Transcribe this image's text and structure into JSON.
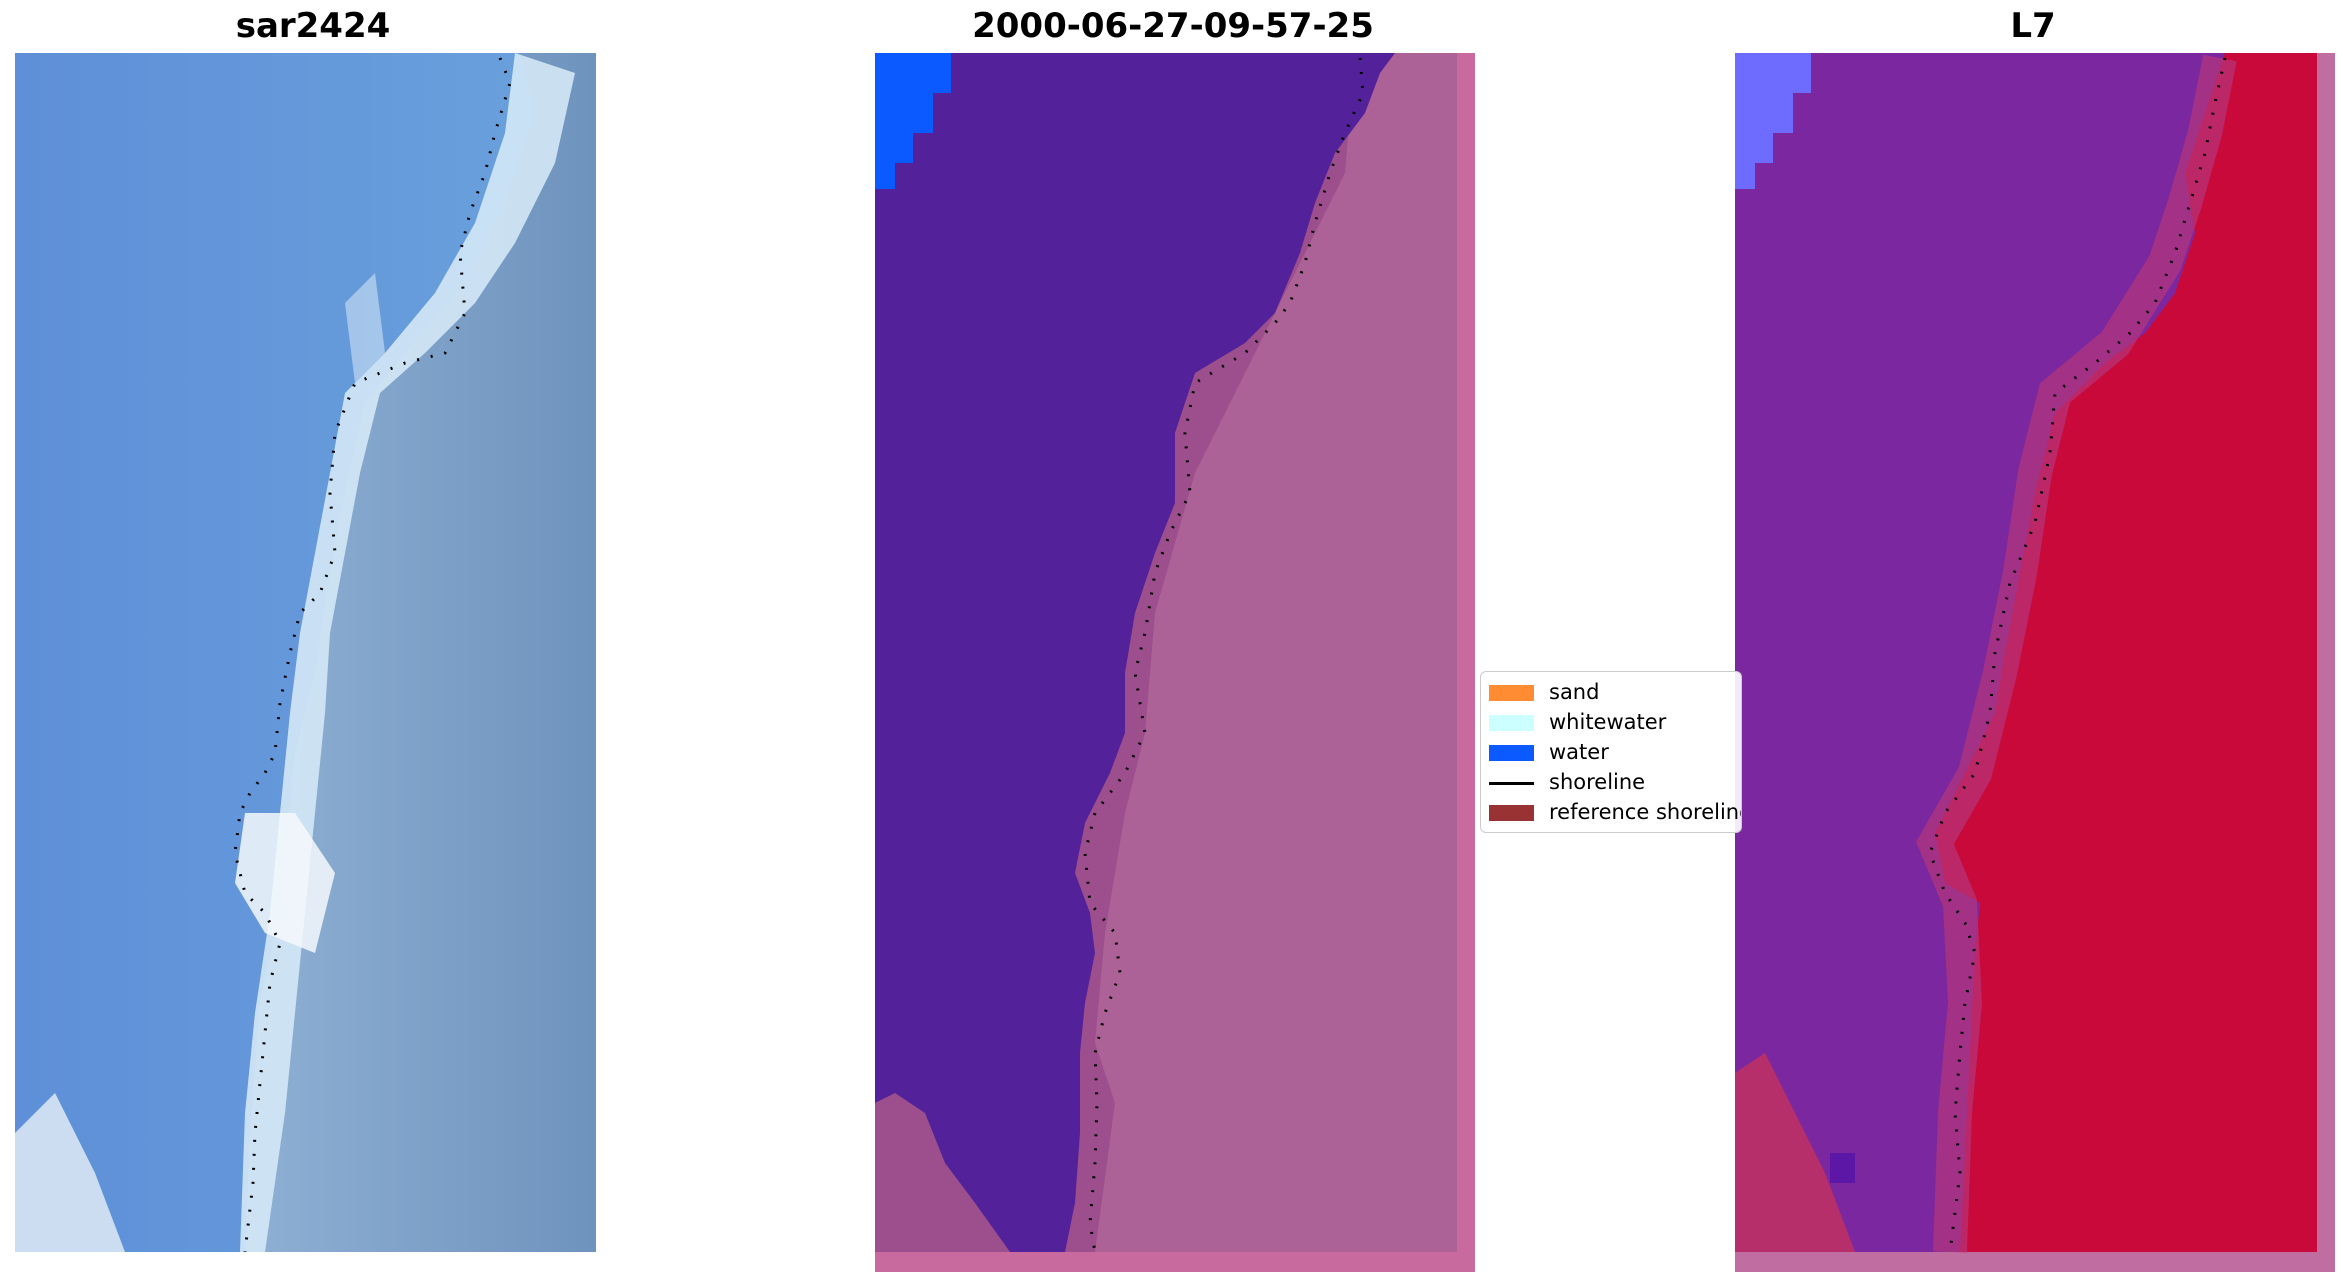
{
  "panels": [
    {
      "title": "sar2424"
    },
    {
      "title": "2000-06-27-09-57-25"
    },
    {
      "title": "L7"
    }
  ],
  "legend": {
    "items": [
      {
        "label": "sand",
        "type": "patch",
        "color": "#ff8c33"
      },
      {
        "label": "whitewater",
        "type": "patch",
        "color": "#ccffff"
      },
      {
        "label": "water",
        "type": "patch",
        "color": "#0a5aff"
      },
      {
        "label": "shoreline",
        "type": "line",
        "color": "#000000"
      },
      {
        "label": "reference shoreline",
        "type": "patch",
        "color": "#993333"
      }
    ]
  },
  "colors": {
    "rgb_sea": "#5f93d6",
    "rgb_land": "#7a9cc4",
    "rgb_foam": "#d9ecf6",
    "class_water_dark": "#53229a",
    "class_water": "#0a5aff",
    "class_land": "#a25d93",
    "class_border": "#c86a9e",
    "index_sea": "#7b28a0",
    "index_land": "#c8093a",
    "index_water": "#6e6cff"
  }
}
